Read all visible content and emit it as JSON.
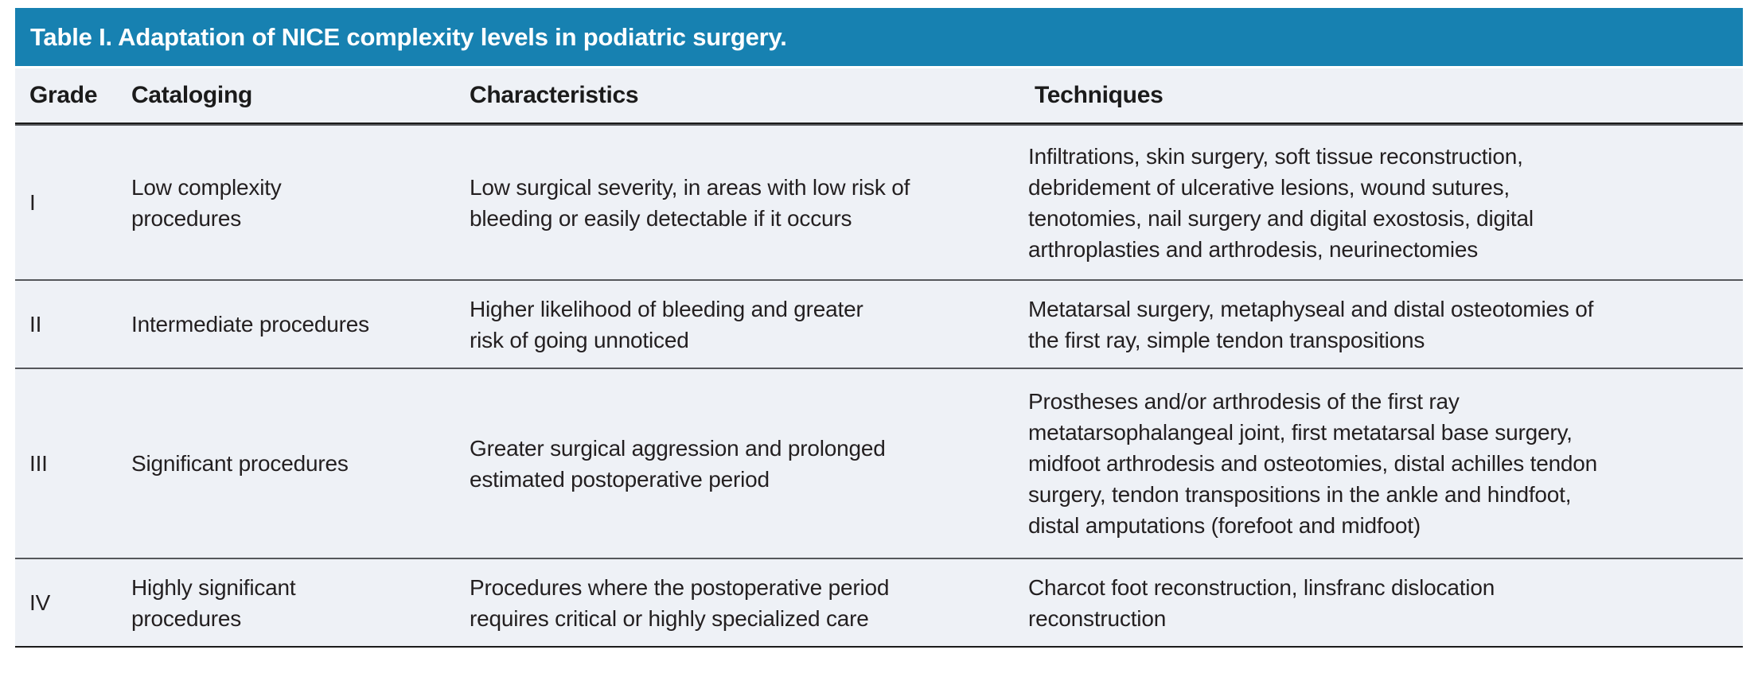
{
  "title": "Table I. Adaptation of NICE complexity levels in podiatric surgery.",
  "colors": {
    "title_bar_bg": "#1781b1",
    "title_text": "#ffffff",
    "body_bg": "#eef1f6",
    "text": "#231f20",
    "strong_rule": "#1b1b1b",
    "row_divider": "#55575b"
  },
  "table": {
    "columns": [
      "Grade",
      "Cataloging",
      "Characteristics",
      "Techniques"
    ],
    "rows": [
      {
        "grade": "I",
        "cataloging": "Low complexity\nprocedures",
        "characteristics": "Low surgical severity, in areas with low risk of\nbleeding or easily detectable if it occurs",
        "techniques": "Infiltrations, skin surgery, soft tissue reconstruction,\ndebridement of ulcerative lesions, wound sutures,\ntenotomies, nail surgery and digital exostosis, digital\narthroplasties and arthrodesis, neurinectomies"
      },
      {
        "grade": "II",
        "cataloging": "Intermediate procedures",
        "characteristics": "Higher likelihood of bleeding and greater\nrisk of going unnoticed",
        "techniques": "Metatarsal surgery, metaphyseal and distal osteotomies of\nthe first ray, simple tendon transpositions"
      },
      {
        "grade": "III",
        "cataloging": "Significant procedures",
        "characteristics": "Greater surgical aggression and prolonged\nestimated postoperative period",
        "techniques": "Prostheses and/or arthrodesis of the first ray\nmetatarsophalangeal joint, first metatarsal base surgery,\nmidfoot arthrodesis and osteotomies, distal achilles tendon\nsurgery, tendon transpositions in the ankle and hindfoot,\ndistal amputations (forefoot and midfoot)"
      },
      {
        "grade": "IV",
        "cataloging": "Highly significant\nprocedures",
        "characteristics": "Procedures where the postoperative period\nrequires critical or highly specialized care",
        "techniques": "Charcot foot reconstruction, linsfranc dislocation\nreconstruction"
      }
    ]
  }
}
